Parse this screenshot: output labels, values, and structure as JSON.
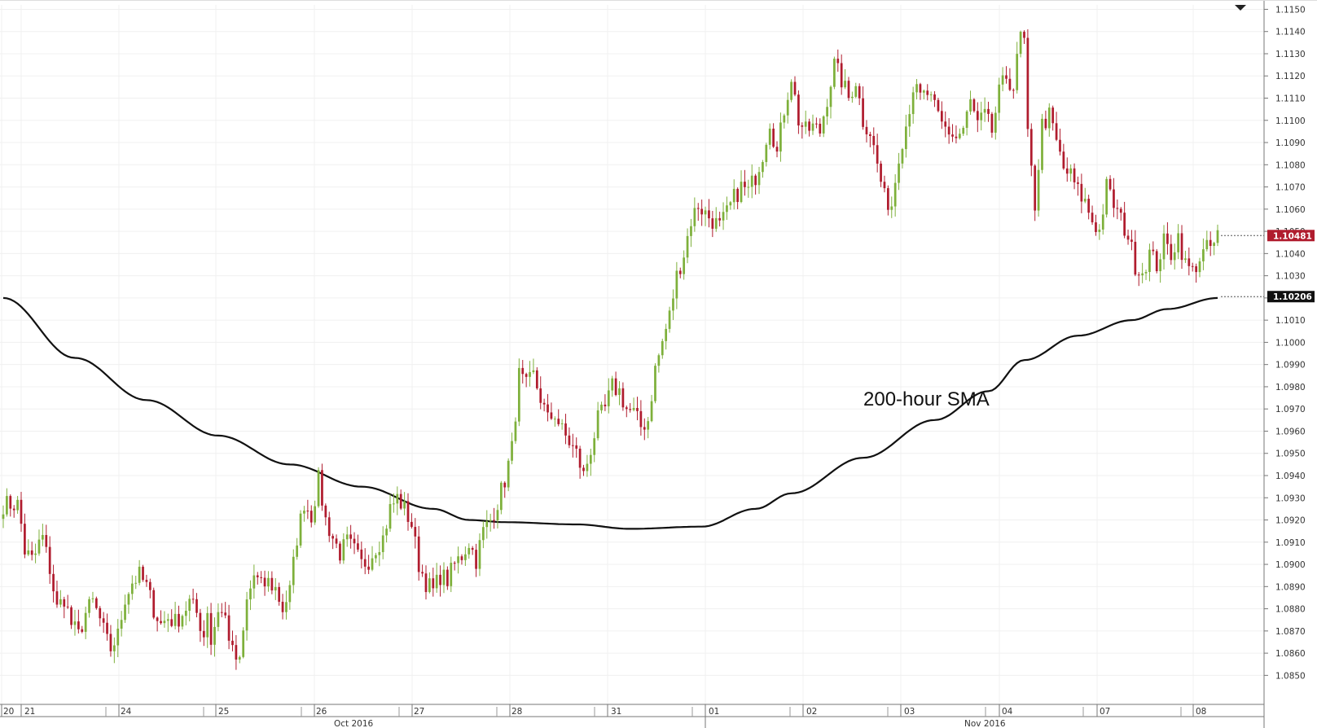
{
  "chart_data": {
    "type": "candlestick",
    "annotation": "200-hour SMA",
    "colors": {
      "up": "#7eb03b",
      "down": "#b01c2e",
      "sma": "#111111",
      "last_price_tag": "#b01c2e",
      "sma_tag": "#111111",
      "grid": "#f0f0f0",
      "background": "#ffffff"
    },
    "y_axis": {
      "side": "right",
      "ylim": [
        1.0845,
        1.1152
      ],
      "ticks": [
        "1.0850",
        "1.0860",
        "1.0870",
        "1.0880",
        "1.0890",
        "1.0900",
        "1.0910",
        "1.0920",
        "1.0930",
        "1.0940",
        "1.0950",
        "1.0960",
        "1.0970",
        "1.0980",
        "1.0990",
        "1.1000",
        "1.1010",
        "1.1020",
        "1.1030",
        "1.1040",
        "1.1050",
        "1.1060",
        "1.1070",
        "1.1080",
        "1.1090",
        "1.1100",
        "1.1110",
        "1.1120",
        "1.1130",
        "1.1140",
        "1.1150"
      ]
    },
    "x_axis": {
      "day_labels": [
        "20",
        "21",
        "24",
        "25",
        "26",
        "27",
        "28",
        "31",
        "01",
        "02",
        "03",
        "04",
        "07",
        "08"
      ],
      "month_labels": [
        "Oct 2016",
        "Nov 2016"
      ]
    },
    "last_price_label": "1.10481",
    "sma_label": "1.10206",
    "price_anchors": [
      [
        0,
        1.0927
      ],
      [
        4,
        1.0927
      ],
      [
        5,
        1.0918
      ],
      [
        6,
        1.0906
      ],
      [
        8,
        1.0902
      ],
      [
        11,
        1.0912
      ],
      [
        13,
        1.0898
      ],
      [
        15,
        1.088
      ],
      [
        17,
        1.0885
      ],
      [
        19,
        1.0873
      ],
      [
        21,
        1.0868
      ],
      [
        23,
        1.0878
      ],
      [
        25,
        1.0883
      ],
      [
        27,
        1.0875
      ],
      [
        29,
        1.0865
      ],
      [
        30,
        1.0862
      ],
      [
        32,
        1.0868
      ],
      [
        34,
        1.0885
      ],
      [
        36,
        1.0892
      ],
      [
        38,
        1.0895
      ],
      [
        40,
        1.089
      ],
      [
        42,
        1.088
      ],
      [
        44,
        1.0873
      ],
      [
        46,
        1.0876
      ],
      [
        48,
        1.0874
      ],
      [
        50,
        1.0878
      ],
      [
        52,
        1.0883
      ],
      [
        54,
        1.0878
      ],
      [
        56,
        1.0868
      ],
      [
        57,
        1.088
      ],
      [
        58,
        1.0865
      ],
      [
        60,
        1.088
      ],
      [
        62,
        1.0876
      ],
      [
        64,
        1.086
      ],
      [
        66,
        1.0855
      ],
      [
        68,
        1.0883
      ],
      [
        70,
        1.0895
      ],
      [
        72,
        1.089
      ],
      [
        74,
        1.0892
      ],
      [
        76,
        1.0889
      ],
      [
        78,
        1.088
      ],
      [
        80,
        1.0888
      ],
      [
        82,
        1.0912
      ],
      [
        84,
        1.0928
      ],
      [
        86,
        1.0922
      ],
      [
        88,
        1.0938
      ],
      [
        90,
        1.092
      ],
      [
        92,
        1.0912
      ],
      [
        94,
        1.0905
      ],
      [
        96,
        1.091
      ],
      [
        98,
        1.0906
      ],
      [
        100,
        1.09
      ],
      [
        102,
        1.0902
      ],
      [
        104,
        1.0908
      ],
      [
        106,
        1.0912
      ],
      [
        108,
        1.0925
      ],
      [
        110,
        1.093
      ],
      [
        112,
        1.0925
      ],
      [
        114,
        1.0918
      ],
      [
        116,
        1.09
      ],
      [
        118,
        1.0892
      ],
      [
        120,
        1.0888
      ],
      [
        122,
        1.0895
      ],
      [
        124,
        1.0893
      ],
      [
        126,
        1.09
      ],
      [
        128,
        1.0904
      ],
      [
        130,
        1.091
      ],
      [
        132,
        1.0902
      ],
      [
        134,
        1.0915
      ],
      [
        136,
        1.092
      ],
      [
        138,
        1.0928
      ],
      [
        140,
        1.0938
      ],
      [
        142,
        1.0952
      ],
      [
        144,
        1.0985
      ],
      [
        146,
        1.098
      ],
      [
        148,
        1.0985
      ],
      [
        150,
        1.0975
      ],
      [
        152,
        1.0965
      ],
      [
        154,
        1.0968
      ],
      [
        156,
        1.096
      ],
      [
        158,
        1.0955
      ],
      [
        160,
        1.095
      ],
      [
        162,
        1.094
      ],
      [
        164,
        1.0952
      ],
      [
        166,
        1.0965
      ],
      [
        168,
        1.097
      ],
      [
        170,
        1.098
      ],
      [
        172,
        1.0978
      ],
      [
        174,
        1.097
      ],
      [
        176,
        1.0968
      ],
      [
        178,
        1.0962
      ],
      [
        180,
        1.0965
      ],
      [
        182,
        1.0988
      ],
      [
        184,
        1.1
      ],
      [
        186,
        1.1012
      ],
      [
        188,
        1.103
      ],
      [
        190,
        1.104
      ],
      [
        192,
        1.1055
      ],
      [
        194,
        1.1062
      ],
      [
        196,
        1.1058
      ],
      [
        198,
        1.1055
      ],
      [
        200,
        1.1052
      ],
      [
        202,
        1.1058
      ],
      [
        204,
        1.1065
      ],
      [
        206,
        1.107
      ],
      [
        208,
        1.1068
      ],
      [
        210,
        1.1075
      ],
      [
        212,
        1.1085
      ],
      [
        214,
        1.11
      ],
      [
        216,
        1.1085
      ],
      [
        218,
        1.1105
      ],
      [
        220,
        1.112
      ],
      [
        222,
        1.11
      ],
      [
        224,
        1.1095
      ],
      [
        226,
        1.1097
      ],
      [
        228,
        1.1095
      ],
      [
        230,
        1.111
      ],
      [
        232,
        1.1125
      ],
      [
        234,
        1.1118
      ],
      [
        236,
        1.111
      ],
      [
        238,
        1.1118
      ],
      [
        240,
        1.11
      ],
      [
        242,
        1.1095
      ],
      [
        244,
        1.108
      ],
      [
        246,
        1.1065
      ],
      [
        248,
        1.1062
      ],
      [
        250,
        1.1085
      ],
      [
        252,
        1.1098
      ],
      [
        254,
        1.1115
      ],
      [
        256,
        1.111
      ],
      [
        258,
        1.1112
      ],
      [
        260,
        1.1105
      ],
      [
        262,
        1.1098
      ],
      [
        264,
        1.1095
      ],
      [
        266,
        1.1092
      ],
      [
        268,
        1.1096
      ],
      [
        270,
        1.1108
      ],
      [
        272,
        1.1098
      ],
      [
        274,
        1.1102
      ],
      [
        276,
        1.1095
      ],
      [
        278,
        1.1112
      ],
      [
        280,
        1.112
      ],
      [
        282,
        1.1115
      ],
      [
        284,
        1.1138
      ],
      [
        285,
        1.1135
      ],
      [
        286,
        1.1092
      ],
      [
        288,
        1.1062
      ],
      [
        290,
        1.1098
      ],
      [
        292,
        1.1102
      ],
      [
        294,
        1.109
      ],
      [
        296,
        1.1078
      ],
      [
        298,
        1.1075
      ],
      [
        300,
        1.1068
      ],
      [
        302,
        1.1063
      ],
      [
        304,
        1.1055
      ],
      [
        306,
        1.105
      ],
      [
        308,
        1.107
      ],
      [
        310,
        1.1062
      ],
      [
        312,
        1.1055
      ],
      [
        314,
        1.1048
      ],
      [
        316,
        1.1035
      ],
      [
        318,
        1.1032
      ],
      [
        320,
        1.104
      ],
      [
        322,
        1.1035
      ],
      [
        324,
        1.1045
      ],
      [
        326,
        1.104
      ],
      [
        328,
        1.1048
      ],
      [
        330,
        1.1035
      ],
      [
        332,
        1.1032
      ],
      [
        334,
        1.1038
      ],
      [
        336,
        1.1042
      ],
      [
        338,
        1.1044
      ],
      [
        339,
        1.1048
      ]
    ],
    "sma_anchors": [
      [
        0,
        1.102
      ],
      [
        20,
        1.0993
      ],
      [
        40,
        1.0974
      ],
      [
        60,
        1.0958
      ],
      [
        80,
        1.0945
      ],
      [
        100,
        1.0935
      ],
      [
        120,
        1.0925
      ],
      [
        130,
        1.092
      ],
      [
        140,
        1.0919
      ],
      [
        160,
        1.0918
      ],
      [
        175,
        1.0916
      ],
      [
        195,
        1.0917
      ],
      [
        210,
        1.0925
      ],
      [
        220,
        1.0932
      ],
      [
        240,
        1.0948
      ],
      [
        260,
        1.0965
      ],
      [
        275,
        1.0978
      ],
      [
        285,
        1.0992
      ],
      [
        300,
        1.1003
      ],
      [
        315,
        1.101
      ],
      [
        325,
        1.1015
      ],
      [
        339,
        1.102
      ]
    ]
  }
}
